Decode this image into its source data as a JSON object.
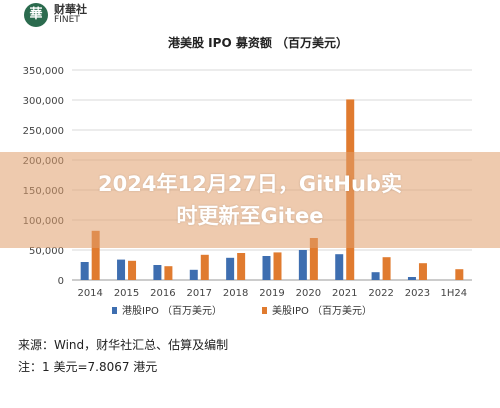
{
  "header": {
    "logo_glyph": "華",
    "logo_cn": "财華社",
    "logo_en": "FINET"
  },
  "chart_data": {
    "type": "bar",
    "title": "港美股 IPO 募资额 （百万美元）",
    "categories": [
      "2014",
      "2015",
      "2016",
      "2017",
      "2018",
      "2019",
      "2020",
      "2021",
      "2022",
      "2023",
      "1H24"
    ],
    "series": [
      {
        "name": "港股IPO （百万美元）",
        "color": "#3e6eb0",
        "values": [
          30000,
          34000,
          25000,
          17000,
          37000,
          40000,
          50000,
          43000,
          13000,
          5000,
          null
        ]
      },
      {
        "name": "美股IPO （百万美元）",
        "color": "#e07b2f",
        "values": [
          82000,
          32000,
          23000,
          42000,
          45000,
          46000,
          70000,
          301000,
          38000,
          28000,
          18000
        ]
      }
    ],
    "y_ticks": [
      "0",
      "50,000",
      "100,000",
      "150,000",
      "200,000",
      "250,000",
      "300,000",
      "350,000"
    ],
    "ylim": [
      0,
      350000
    ],
    "grid": true,
    "legend_position": "bottom"
  },
  "banner": {
    "line1": "2024年12月27日，GitHub实",
    "line2": "时更新至Gitee"
  },
  "notes": {
    "source": "来源：Wind，财华社汇总、估算及编制",
    "exchange": "注：1 美元=7.8067 港元"
  }
}
